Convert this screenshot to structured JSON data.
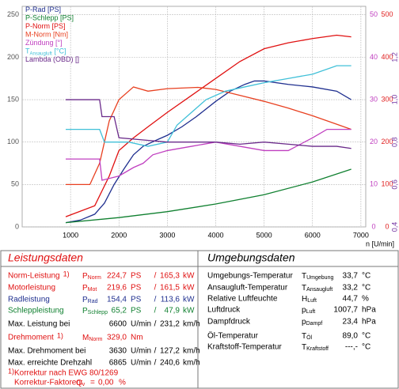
{
  "chart_data": {
    "type": "line",
    "xlabel": "n [U/min]",
    "xlim": [
      0,
      7100
    ],
    "xticks": [
      1000,
      2000,
      3000,
      4000,
      5000,
      6000,
      7000
    ],
    "ylim": [
      0,
      260
    ],
    "yticks": [
      0,
      50,
      100,
      150,
      200,
      250
    ],
    "ycolor": "#555555",
    "y2lim": [
      0,
      520
    ],
    "y2ticks": [
      0,
      100,
      200,
      300,
      400,
      500
    ],
    "y2color": "#e02020",
    "y3lim": [
      0,
      52
    ],
    "y3ticks": [
      0,
      10,
      20,
      30,
      40,
      50
    ],
    "y3color": "#c040c0",
    "y4lim": [
      0.4,
      1.44
    ],
    "y4ticks": [
      {
        "value": 0.4,
        "label": "0,4"
      },
      {
        "value": 0.6,
        "label": "0,6"
      },
      {
        "value": 0.8,
        "label": "0,8"
      },
      {
        "value": 1.0,
        "label": "1,0"
      },
      {
        "value": 1.2,
        "label": "1,2"
      }
    ],
    "y4color": "#7030a0",
    "grid": true,
    "series": [
      {
        "name": "P-Rad [PS]",
        "color": "#1f2f8f",
        "axis": "y",
        "x": [
          900,
          1200,
          1500,
          1700,
          1900,
          2100,
          2300,
          2500,
          2800,
          3000,
          3300,
          3600,
          4000,
          4300,
          4600,
          4800,
          5000,
          5500,
          6000,
          6500,
          6800
        ],
        "values": [
          5,
          8,
          15,
          28,
          50,
          68,
          85,
          95,
          103,
          108,
          118,
          130,
          148,
          160,
          168,
          172,
          172,
          168,
          165,
          160,
          150
        ]
      },
      {
        "name": "P-Schlepp [PS]",
        "color": "#108030",
        "axis": "y",
        "x": [
          900,
          2000,
          3000,
          4000,
          5000,
          6000,
          6800
        ],
        "values": [
          5,
          11,
          18,
          27,
          38,
          53,
          68
        ]
      },
      {
        "name": "P-Norm [PS]",
        "color": "#e01010",
        "axis": "y",
        "x": [
          900,
          1500,
          1800,
          2000,
          2300,
          2600,
          3000,
          3500,
          4000,
          4500,
          5000,
          5500,
          6000,
          6500,
          6800
        ],
        "values": [
          12,
          25,
          60,
          90,
          105,
          118,
          135,
          155,
          175,
          195,
          210,
          217,
          222,
          226,
          224
        ]
      },
      {
        "name": "M-Norm [Nm]",
        "color": "#e84020",
        "axis": "y2",
        "x": [
          900,
          1400,
          1600,
          1800,
          2000,
          2300,
          2600,
          3000,
          3630,
          4000,
          4500,
          5000,
          5500,
          6000,
          6500,
          6800
        ],
        "values": [
          100,
          100,
          150,
          250,
          300,
          330,
          320,
          326,
          329,
          324,
          310,
          296,
          280,
          262,
          242,
          230
        ]
      },
      {
        "name": "Zündung [°]",
        "color": "#c040c0",
        "axis": "y3",
        "x": [
          900,
          1600,
          1650,
          2000,
          2300,
          2500,
          2700,
          3000,
          3500,
          4000,
          4500,
          5000,
          5500,
          6000,
          6300,
          6800
        ],
        "values": [
          16,
          16,
          11,
          12,
          14,
          15,
          17,
          18,
          19,
          20,
          19,
          18,
          18,
          21,
          23,
          23
        ]
      },
      {
        "name": "T",
        "name_sub": "Ansaugluft",
        "name_suffix": " [°C]",
        "color": "#40c0d8",
        "axis": "y3",
        "x": [
          900,
          1600,
          1700,
          2200,
          2600,
          3000,
          3200,
          3500,
          3800,
          4200,
          4600,
          5000,
          5500,
          6000,
          6500,
          6800
        ],
        "values": [
          23,
          23,
          20,
          20,
          19,
          20,
          24,
          27,
          30,
          32,
          33,
          34,
          35,
          36,
          38,
          38
        ]
      },
      {
        "name": "Lambda (OBD) []",
        "color": "#6a2a8a",
        "axis": "y4",
        "x": [
          900,
          1600,
          1650,
          1900,
          2000,
          2500,
          3000,
          3500,
          4000,
          4500,
          5000,
          5500,
          6000,
          6500,
          6800
        ],
        "values": [
          1.0,
          1.0,
          0.92,
          0.92,
          0.82,
          0.81,
          0.8,
          0.8,
          0.8,
          0.79,
          0.8,
          0.79,
          0.78,
          0.78,
          0.77
        ]
      }
    ]
  },
  "leistungsdaten": {
    "title": "Leistungsdaten",
    "rows": [
      {
        "label": "Norm-Leistung",
        "note": "1)",
        "sym": "P",
        "sub": "Norm",
        "v1": "224,7",
        "u1": "PS",
        "sep": "/",
        "v2": "165,3",
        "u2": "kW",
        "color": "#e01010"
      },
      {
        "label": "Motorleistung",
        "sym": "P",
        "sub": "Mot",
        "v1": "219,6",
        "u1": "PS",
        "sep": "/",
        "v2": "161,5",
        "u2": "kW",
        "color": "#e01010"
      },
      {
        "label": "Radleistung",
        "sym": "P",
        "sub": "Rad",
        "v1": "154,4",
        "u1": "PS",
        "sep": "/",
        "v2": "113,6",
        "u2": "kW",
        "color": "#1f2f8f"
      },
      {
        "label": "Schleppleistung",
        "sym": "P",
        "sub": "Schlepp",
        "v1": "65,2",
        "u1": "PS",
        "sep": "/",
        "v2": "47,9",
        "u2": "kW",
        "color": "#108030"
      },
      {
        "label": "Max. Leistung bei",
        "v1": "6600",
        "u1": "U/min",
        "sep": "/",
        "v2": "231,2",
        "u2": "km/h",
        "color": "#000000"
      },
      {
        "label": "Drehmoment",
        "note": "1)",
        "sym": "M",
        "sub": "Norm",
        "v1": "329,0",
        "u1": "Nm",
        "color": "#e01010"
      },
      {
        "label": "Max. Drehmoment bei",
        "v1": "3630",
        "u1": "U/min",
        "sep": "/",
        "v2": "127,2",
        "u2": "km/h",
        "color": "#000000"
      },
      {
        "label": "Max. erreichte Drehzahl",
        "v1": "6865",
        "u1": "U/min",
        "sep": "/",
        "v2": "240,6",
        "u2": "km/h",
        "color": "#000000"
      }
    ],
    "footnote": {
      "mark": "1)",
      "text": "Korrektur nach EWG 80/1269"
    },
    "factors": {
      "text": "Korrektur-Faktoren:",
      "sym": "Q",
      "sub": "v",
      "eq": "=",
      "value": "0,00",
      "unit": "%"
    }
  },
  "umgebungsdaten": {
    "title": "Umgebungsdaten",
    "rows": [
      {
        "label": "Umgebungs-Temperatur",
        "sym": "T",
        "sub": "Umgebung",
        "v1": "33,7",
        "u1": "°C"
      },
      {
        "label": "Ansaugluft-Temperatur",
        "sym": "T",
        "sub": "Ansaugluft",
        "v1": "33,2",
        "u1": "°C"
      },
      {
        "label": "Relative Luftfeuchte",
        "sym": "H",
        "sub": "Luft",
        "v1": "44,7",
        "u1": "%"
      },
      {
        "label": "Luftdruck",
        "sym": "p",
        "sub": "Luft",
        "v1": "1007,7",
        "u1": "hPa"
      },
      {
        "label": "Dampfdruck",
        "sym": "p",
        "sub": "Dampf",
        "v1": "23,4",
        "u1": "hPa"
      },
      {
        "label": "Öl-Temperatur",
        "sym": "T",
        "sub": "Öl",
        "v1": "89,0",
        "u1": "°C"
      },
      {
        "label": "Kraftstoff-Temperatur",
        "sym": "T",
        "sub": "Kraftstoff",
        "v1": "---,-",
        "u1": "°C"
      }
    ]
  }
}
